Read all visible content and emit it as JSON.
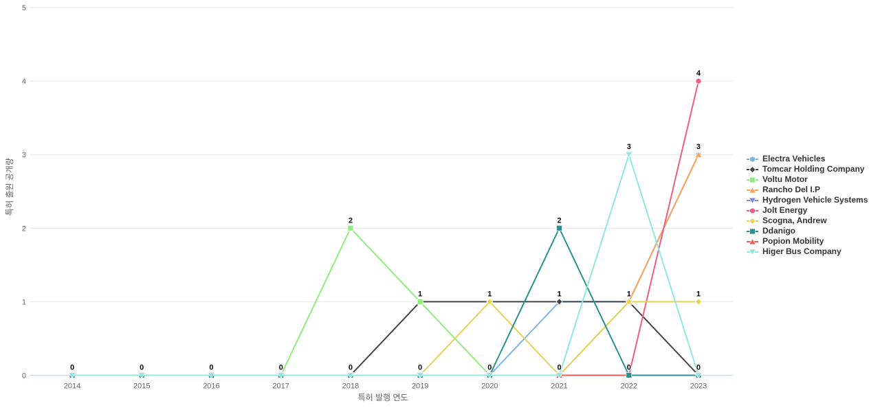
{
  "chart_data": {
    "type": "line",
    "title": "",
    "xlabel": "특허 발행 연도",
    "ylabel": "특허 출원 공개량",
    "x_categories": [
      "2014",
      "2015",
      "2016",
      "2017",
      "2018",
      "2019",
      "2020",
      "2021",
      "2022",
      "2023"
    ],
    "ylim": [
      0,
      5
    ],
    "yticks": [
      0,
      1,
      2,
      3,
      4,
      5
    ],
    "grid": true,
    "legend_position": "right-middle",
    "series": [
      {
        "name": "Electra Vehicles",
        "color": "#7cb5ec",
        "marker": "circle",
        "values": [
          0,
          0,
          0,
          0,
          0,
          0,
          0,
          1,
          1,
          3
        ]
      },
      {
        "name": "Tomcar Holding Company",
        "color": "#434348",
        "marker": "diamond",
        "values": [
          0,
          0,
          0,
          0,
          0,
          1,
          1,
          1,
          1,
          0
        ]
      },
      {
        "name": "Voltu Motor",
        "color": "#90ed7d",
        "marker": "square",
        "values": [
          0,
          0,
          0,
          0,
          2,
          1,
          0,
          0,
          0,
          0
        ]
      },
      {
        "name": "Rancho Del I.P",
        "color": "#f7a35c",
        "marker": "triangle",
        "values": [
          0,
          0,
          0,
          0,
          0,
          0,
          0,
          0,
          1,
          3
        ]
      },
      {
        "name": "Hydrogen Vehicle Systems",
        "color": "#8085e9",
        "marker": "triangle-down",
        "values": [
          0,
          0,
          0,
          0,
          0,
          0,
          0,
          0,
          0,
          0
        ]
      },
      {
        "name": "Jolt Energy",
        "color": "#f15c80",
        "marker": "circle",
        "values": [
          0,
          0,
          0,
          0,
          0,
          0,
          0,
          0,
          0,
          4
        ]
      },
      {
        "name": "Scogna, Andrew",
        "color": "#e4d354",
        "marker": "diamond",
        "values": [
          0,
          0,
          0,
          0,
          0,
          0,
          1,
          0,
          1,
          1
        ]
      },
      {
        "name": "Ddanigo",
        "color": "#2b908f",
        "marker": "square",
        "values": [
          0,
          0,
          0,
          0,
          0,
          0,
          0,
          2,
          0,
          0
        ]
      },
      {
        "name": "Popion Mobility",
        "color": "#f45b5b",
        "marker": "triangle",
        "values": [
          0,
          0,
          0,
          0,
          0,
          0,
          0,
          0,
          0,
          0
        ]
      },
      {
        "name": "Higer Bus Company",
        "color": "#91e8e1",
        "marker": "triangle-down",
        "values": [
          0,
          0,
          0,
          0,
          0,
          0,
          0,
          0,
          3,
          0
        ]
      }
    ],
    "draw_order": [
      0,
      1,
      2,
      3,
      4,
      5,
      6,
      8,
      7,
      9
    ],
    "style": {
      "background": "#ffffff",
      "grid_color": "#e6e6e6",
      "axis_line_color": "#ccd6eb",
      "tick_label_color": "#666666",
      "axis_title_color": "#666666",
      "legend_text_color": "#333333",
      "data_label_color": "#000000"
    }
  }
}
